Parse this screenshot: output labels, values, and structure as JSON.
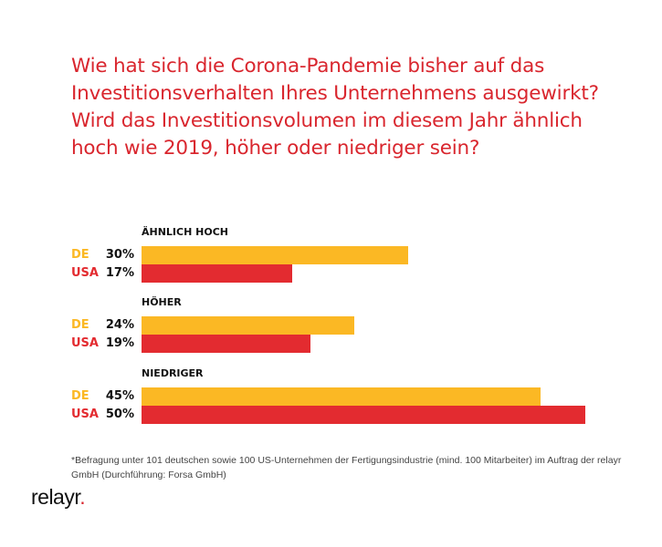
{
  "chart_data": {
    "type": "bar",
    "orientation": "horizontal",
    "title": "Wie hat sich die Corona-Pandemie bisher auf das Investitionsverhalten Ihres Unternehmens ausgewirkt? Wird das Investitionsvolumen im diesem Jahr ähnlich hoch wie 2019, höher oder niedriger sein?",
    "categories": [
      "ÄHNLICH HOCH",
      "HÖHER",
      "NIEDRIGER"
    ],
    "series": [
      {
        "name": "DE",
        "values": [
          30,
          24,
          45
        ],
        "labels": [
          "30%",
          "24%",
          "45%"
        ],
        "color": "#fbb824"
      },
      {
        "name": "USA",
        "values": [
          17,
          19,
          50
        ],
        "labels": [
          "17%",
          "19%",
          "50%"
        ],
        "color": "#e32b30"
      }
    ],
    "unit": "%",
    "xlim": [
      0,
      50
    ],
    "grid": false
  },
  "title_color": "#d9262e",
  "footnote": "*Befragung unter 101 deutschen sowie 100 US-Unternehmen der Fertigungsindustrie (mind. 100 Mitarbeiter) im Auftrag der relayr GmbH (Durchführung: Forsa GmbH)",
  "logo": {
    "text": "relayr",
    "dot": "."
  }
}
